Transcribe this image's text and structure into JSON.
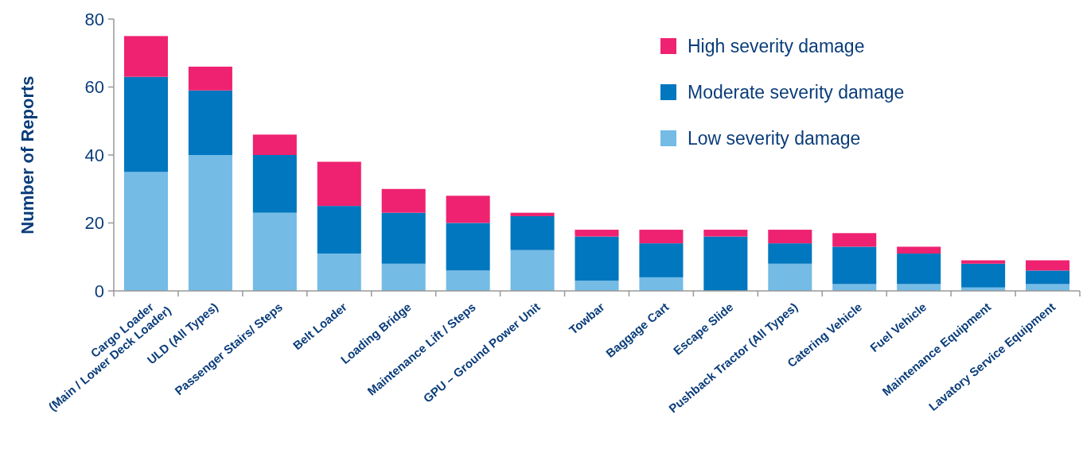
{
  "chart_data": {
    "type": "bar",
    "stacked": true,
    "ylabel": "Number of Reports",
    "categories": [
      "Cargo Loader\n(Main / Lower Deck Loader)",
      "ULD (All Types)",
      "Passenger Stairs/ Steps",
      "Belt Loader",
      "Loading Bridge",
      "Maintenance Lift / Steps",
      "GPU – Ground Power Unit",
      "Towbar",
      "Baggage Cart",
      "Escape Slide",
      "Pushback Tractor (All Types)",
      "Catering Vehicle",
      "Fuel Vehicle",
      "Maintenance Equipment",
      "Lavatory Service Equipment"
    ],
    "series": [
      {
        "name": "Low severity damage",
        "color": "#74bbe6",
        "values": [
          35,
          40,
          23,
          11,
          8,
          6,
          12,
          3,
          4,
          0,
          8,
          2,
          2,
          1,
          2
        ]
      },
      {
        "name": "Moderate severity damage",
        "color": "#0077be",
        "values": [
          28,
          19,
          17,
          14,
          15,
          14,
          10,
          13,
          10,
          16,
          6,
          11,
          9,
          7,
          4
        ]
      },
      {
        "name": "High severity damage",
        "color": "#ee2270",
        "values": [
          12,
          7,
          6,
          13,
          7,
          8,
          1,
          2,
          4,
          2,
          4,
          4,
          2,
          1,
          3
        ]
      }
    ],
    "ylim": [
      0,
      80
    ],
    "yticks": [
      0,
      20,
      40,
      60,
      80
    ],
    "grid": false,
    "legend": "top right"
  }
}
